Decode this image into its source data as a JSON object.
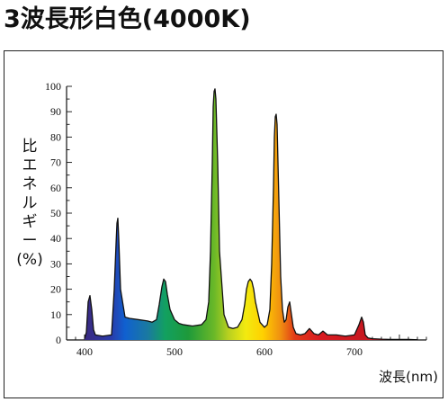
{
  "title": "3波長形白色(4000K)",
  "chart_data": {
    "type": "area",
    "title": "3波長形白色(4000K)",
    "ylabel": "比エネルギー(%)",
    "ylabel_chars": [
      "比",
      "エ",
      "ネ",
      "ル",
      "ギ",
      "ー",
      "(%)"
    ],
    "xlabel": "波長(nm)",
    "xlim": [
      380,
      780
    ],
    "ylim": [
      0,
      100
    ],
    "xticks": [
      400,
      500,
      600,
      700
    ],
    "yticks": [
      0,
      10,
      20,
      30,
      40,
      50,
      60,
      70,
      80,
      90,
      100
    ],
    "grid": false,
    "legend": "none",
    "series": [
      {
        "x": [
          400,
          402,
          404,
          406,
          408,
          410,
          412,
          420,
          430,
          433,
          435,
          436,
          437,
          438,
          440,
          445,
          450,
          460,
          470,
          475,
          480,
          483,
          486,
          488,
          490,
          492,
          495,
          500,
          505,
          510,
          520,
          530,
          535,
          538,
          540,
          542,
          543,
          544,
          545,
          546,
          548,
          550,
          555,
          560,
          565,
          570,
          575,
          578,
          580,
          582,
          584,
          586,
          588,
          590,
          595,
          600,
          603,
          606,
          608,
          610,
          611,
          612,
          613,
          614,
          616,
          618,
          620,
          622,
          624,
          626,
          628,
          630,
          632,
          635,
          640,
          645,
          650,
          655,
          660,
          665,
          670,
          680,
          690,
          700,
          705,
          708,
          710,
          712,
          715,
          720,
          730,
          740,
          750,
          760,
          770
        ],
        "y": [
          0.5,
          3,
          15,
          17.5,
          12,
          4,
          2,
          1.5,
          2,
          20,
          38,
          46,
          48,
          40,
          20,
          9,
          8.5,
          8,
          7.5,
          7,
          8,
          14,
          21,
          24,
          23,
          18,
          12,
          8,
          6.5,
          6,
          5.5,
          6,
          8,
          15,
          35,
          70,
          92,
          98,
          99,
          95,
          70,
          35,
          10,
          5,
          4.5,
          5,
          8,
          14,
          20,
          23,
          24,
          23,
          20,
          15,
          7,
          5,
          6,
          12,
          30,
          60,
          80,
          88,
          89,
          85,
          55,
          25,
          12,
          7,
          8,
          13,
          15,
          10,
          5,
          2.5,
          2,
          2.5,
          4.5,
          2.5,
          2,
          3.5,
          2,
          2,
          1.5,
          2,
          6,
          9,
          7,
          2,
          0.8,
          0.5,
          0.3,
          0.2,
          0.2,
          0.2,
          0.1
        ]
      }
    ]
  },
  "colors": {
    "outline": "#111111",
    "frame": "#222222"
  }
}
